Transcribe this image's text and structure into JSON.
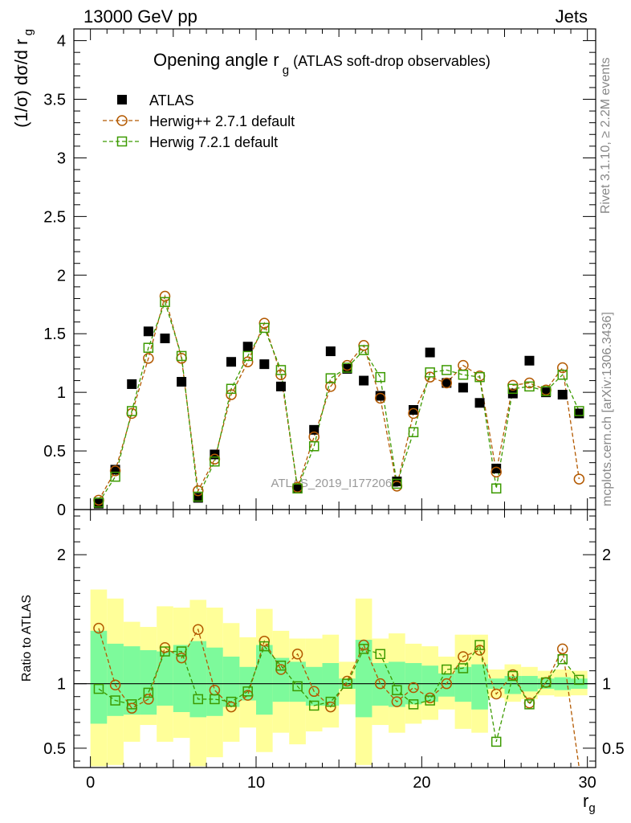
{
  "header": {
    "left": "13000 GeV pp",
    "right": "Jets"
  },
  "side": {
    "rivet": "Rivet 3.1.10, ≥ 2.2M events",
    "mcplots": "mcplots.cern.ch [arXiv:1306.3436]"
  },
  "chart_data": [
    {
      "type": "scatter",
      "title": "Opening angle r",
      "title_sub": "g",
      "title_extra": "(ATLAS soft-drop observables)",
      "ylabel": "(1/σ) dσ/d r",
      "ylabel_sub": "g",
      "xlim": [
        -1,
        30.5
      ],
      "ylim": [
        0,
        4.1
      ],
      "yticks": [
        "0",
        "0.5",
        "1",
        "1.5",
        "2",
        "2.5",
        "3",
        "3.5",
        "4"
      ],
      "watermark": "ATLAS_2019_I1772062",
      "legend": {
        "position": "top-left",
        "entries": [
          "ATLAS",
          "Herwig++ 2.7.1 default",
          "Herwig 7.2.1 default"
        ]
      },
      "x": [
        0.5,
        1.5,
        2.5,
        3.5,
        4.5,
        5.5,
        6.5,
        7.5,
        8.5,
        9.5,
        10.5,
        11.5,
        12.5,
        13.5,
        14.5,
        15.5,
        16.5,
        17.5,
        18.5,
        19.5,
        20.5,
        21.5,
        22.5,
        23.5,
        24.5,
        25.5,
        26.5,
        27.5,
        28.5,
        29.5
      ],
      "series": [
        {
          "name": "ATLAS",
          "color": "#000000",
          "marker": "filled-square",
          "values": [
            0.05,
            0.34,
            1.07,
            1.52,
            1.46,
            1.09,
            0.1,
            0.47,
            1.26,
            1.39,
            1.24,
            1.05,
            0.18,
            0.68,
            1.35,
            1.2,
            1.1,
            0.97,
            0.24,
            0.85,
            1.34,
            1.08,
            1.04,
            0.91,
            0.35,
            0.99,
            1.27,
            1.0,
            0.98,
            0.82
          ]
        },
        {
          "name": "Herwig++ 2.7.1 default",
          "color": "#b35900",
          "marker": "open-circle",
          "values": [
            0.08,
            0.33,
            0.82,
            1.29,
            1.82,
            1.29,
            0.16,
            0.43,
            0.98,
            1.26,
            1.59,
            1.15,
            0.19,
            0.62,
            1.05,
            1.23,
            1.4,
            0.95,
            0.2,
            0.82,
            1.13,
            1.08,
            1.23,
            1.14,
            0.32,
            1.06,
            1.08,
            1.02,
            1.21,
            0.26
          ]
        },
        {
          "name": "Herwig 7.2.1 default",
          "color": "#3c9a00",
          "marker": "open-square",
          "values": [
            0.06,
            0.28,
            0.84,
            1.38,
            1.77,
            1.31,
            0.11,
            0.41,
            1.03,
            1.31,
            1.55,
            1.19,
            0.18,
            0.54,
            1.12,
            1.21,
            1.36,
            1.13,
            0.22,
            0.66,
            1.17,
            1.19,
            1.15,
            1.13,
            0.18,
            1.03,
            1.05,
            1.01,
            1.15,
            0.84
          ]
        }
      ]
    },
    {
      "type": "scatter",
      "ylabel": "Ratio to ATLAS",
      "xlabel": "r",
      "xlabel_sub": "g",
      "xlim": [
        -1,
        30.5
      ],
      "ylim": [
        0.35,
        2.35
      ],
      "xticks": [
        "0",
        "10",
        "20",
        "30"
      ],
      "yticks": [
        "0.5",
        "1",
        "2"
      ],
      "reference_line": 1,
      "x": [
        0.5,
        1.5,
        2.5,
        3.5,
        4.5,
        5.5,
        6.5,
        7.5,
        8.5,
        9.5,
        10.5,
        11.5,
        12.5,
        13.5,
        14.5,
        15.5,
        16.5,
        17.5,
        18.5,
        19.5,
        20.5,
        21.5,
        22.5,
        23.5,
        24.5,
        25.5,
        26.5,
        27.5,
        28.5,
        29.5
      ],
      "band_inner": {
        "color": "#7dfa9b",
        "low": [
          0.69,
          0.75,
          0.76,
          0.76,
          0.83,
          0.78,
          0.74,
          0.75,
          0.82,
          0.87,
          0.76,
          0.86,
          0.86,
          0.83,
          0.83,
          0.96,
          0.74,
          0.83,
          0.82,
          0.84,
          0.86,
          0.9,
          0.86,
          0.8,
          0.96,
          0.92,
          0.94,
          0.96,
          0.95,
          0.96
        ],
        "high": [
          1.41,
          1.31,
          1.29,
          1.26,
          1.25,
          1.3,
          1.33,
          1.28,
          1.21,
          1.13,
          1.3,
          1.2,
          1.17,
          1.13,
          1.16,
          1.04,
          1.34,
          1.16,
          1.17,
          1.16,
          1.14,
          1.08,
          1.13,
          1.15,
          1.04,
          1.06,
          1.06,
          1.04,
          1.05,
          1.04
        ]
      },
      "band_outer": {
        "color": "#ffff99",
        "low": [
          0.36,
          0.37,
          0.55,
          0.68,
          0.55,
          0.58,
          0.36,
          0.43,
          0.55,
          0.66,
          0.47,
          0.62,
          0.53,
          0.63,
          0.66,
          0.84,
          0.37,
          0.68,
          0.62,
          0.69,
          0.72,
          0.8,
          0.65,
          0.62,
          0.89,
          0.86,
          0.88,
          0.91,
          0.9,
          0.91
        ],
        "high": [
          1.73,
          1.66,
          1.48,
          1.44,
          1.6,
          1.59,
          1.65,
          1.59,
          1.47,
          1.36,
          1.58,
          1.41,
          1.35,
          1.35,
          1.38,
          1.17,
          1.66,
          1.35,
          1.39,
          1.31,
          1.29,
          1.21,
          1.38,
          1.38,
          1.11,
          1.15,
          1.13,
          1.1,
          1.11,
          1.1
        ]
      },
      "series": [
        {
          "name": "Herwig++ 2.7.1 default",
          "color": "#b35900",
          "marker": "open-circle",
          "values": [
            1.43,
            0.99,
            0.81,
            0.88,
            1.28,
            1.2,
            1.42,
            0.95,
            0.82,
            0.91,
            1.33,
            1.11,
            1.23,
            0.94,
            0.82,
            1.02,
            1.3,
            1.0,
            0.86,
            0.97,
            0.89,
            1.0,
            1.21,
            1.26,
            0.92,
            1.07,
            0.85,
            1.01,
            1.27,
            0.34
          ]
        },
        {
          "name": "Herwig 7.2.1 default",
          "color": "#3c9a00",
          "marker": "open-square",
          "values": [
            0.96,
            0.87,
            0.84,
            0.93,
            1.25,
            1.25,
            0.88,
            0.88,
            0.86,
            0.94,
            1.29,
            1.14,
            0.98,
            0.83,
            0.86,
            1.0,
            1.27,
            1.23,
            0.95,
            0.84,
            0.87,
            1.11,
            1.12,
            1.3,
            0.55,
            1.06,
            0.84,
            1.01,
            1.19,
            1.03
          ]
        }
      ]
    }
  ]
}
